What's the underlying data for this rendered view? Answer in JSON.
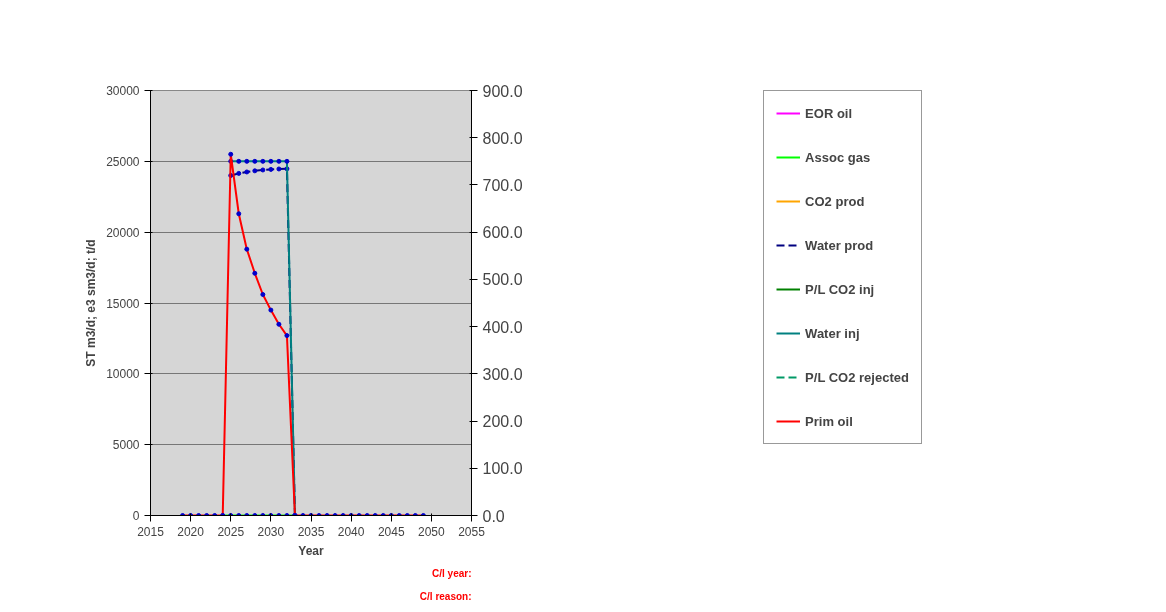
{
  "chart_data": {
    "type": "line",
    "xlabel": "Year",
    "ylabel": "ST m3/d; e3 sm3/d; t/d",
    "x": [
      2019,
      2020,
      2021,
      2022,
      2023,
      2024,
      2025,
      2026,
      2027,
      2028,
      2029,
      2030,
      2031,
      2032,
      2033,
      2034,
      2035,
      2036,
      2037,
      2038,
      2039,
      2040,
      2041,
      2042,
      2043,
      2044,
      2045,
      2046,
      2047,
      2048,
      2049
    ],
    "series": [
      {
        "name": "EOR oil",
        "color": "#ff00ff",
        "values": [
          null,
          null,
          null,
          null,
          null,
          null,
          null,
          null,
          null,
          null,
          null,
          null,
          null,
          null,
          null,
          null,
          null,
          null,
          null,
          null,
          null,
          null,
          null,
          null,
          null,
          null,
          null,
          null,
          null,
          null,
          null
        ]
      },
      {
        "name": "Assoc gas",
        "color": "#00ff00",
        "values": [
          null,
          null,
          null,
          null,
          null,
          0,
          0,
          0,
          0,
          0,
          0,
          0,
          0,
          0,
          0,
          null,
          null,
          null,
          null,
          null,
          null,
          null,
          null,
          null,
          null,
          null,
          null,
          null,
          null,
          null,
          null
        ]
      },
      {
        "name": "CO2 prod",
        "color": "#ffa500",
        "values": [
          null,
          null,
          null,
          null,
          null,
          null,
          null,
          null,
          null,
          null,
          null,
          null,
          null,
          null,
          null,
          null,
          null,
          null,
          null,
          null,
          null,
          null,
          null,
          null,
          null,
          null,
          null,
          null,
          null,
          null,
          null
        ]
      },
      {
        "name": "Water prod",
        "color": "#000080",
        "line_style": "dashed",
        "values": [
          null,
          null,
          null,
          null,
          null,
          null,
          24000,
          24150,
          24250,
          24330,
          24390,
          24430,
          24460,
          24470,
          0,
          null,
          null,
          null,
          null,
          null,
          null,
          null,
          null,
          null,
          null,
          null,
          null,
          null,
          null,
          null,
          null
        ]
      },
      {
        "name": "P/L CO2 inj",
        "color": "#008000",
        "values": [
          null,
          null,
          null,
          null,
          null,
          null,
          null,
          null,
          null,
          null,
          null,
          null,
          null,
          null,
          null,
          null,
          null,
          null,
          null,
          null,
          null,
          null,
          null,
          null,
          null,
          null,
          null,
          null,
          null,
          null,
          null
        ]
      },
      {
        "name": "Water inj",
        "color": "#008080",
        "values": [
          null,
          null,
          null,
          null,
          null,
          null,
          25000,
          25000,
          25000,
          25000,
          25000,
          25000,
          25000,
          25000,
          0,
          null,
          null,
          null,
          null,
          null,
          null,
          null,
          null,
          null,
          null,
          null,
          null,
          null,
          null,
          null,
          null
        ]
      },
      {
        "name": "P/L CO2 rejected",
        "color": "#009966",
        "line_style": "dashed",
        "values": [
          null,
          null,
          null,
          null,
          null,
          null,
          null,
          null,
          null,
          null,
          null,
          null,
          null,
          null,
          null,
          null,
          null,
          null,
          null,
          null,
          null,
          null,
          null,
          null,
          null,
          null,
          null,
          null,
          null,
          null,
          null
        ]
      },
      {
        "name": "Prim oil",
        "color": "#ff0000",
        "values": [
          0,
          0,
          0,
          0,
          0,
          0,
          25500,
          21300,
          18800,
          17100,
          15600,
          14500,
          13500,
          12700,
          0,
          0,
          0,
          0,
          0,
          0,
          0,
          0,
          0,
          0,
          0,
          0,
          0,
          0,
          0,
          0,
          0
        ]
      }
    ],
    "xlim": [
      2015,
      2055
    ],
    "xticks": [
      2015,
      2020,
      2025,
      2030,
      2035,
      2040,
      2045,
      2050,
      2055
    ],
    "ylim": [
      0,
      30000
    ],
    "yticks": [
      0,
      5000,
      10000,
      15000,
      20000,
      25000,
      30000
    ],
    "y2lim": [
      0,
      900
    ],
    "y2ticks": [
      {
        "value": 0,
        "label": "0.0"
      },
      {
        "value": 100,
        "label": "100.0"
      },
      {
        "value": 200,
        "label": "200.0"
      },
      {
        "value": 300,
        "label": "300.0"
      },
      {
        "value": 400,
        "label": "400.0"
      },
      {
        "value": 500,
        "label": "500.0"
      },
      {
        "value": 600,
        "label": "600.0"
      },
      {
        "value": 700,
        "label": "700.0"
      },
      {
        "value": 800,
        "label": "800.0"
      },
      {
        "value": 900,
        "label": "900.0"
      }
    ],
    "grid": "y",
    "legend": "right",
    "marker": "circle",
    "line_style": "solid",
    "annotations": [
      "C/l year:",
      "C/l reason:"
    ]
  }
}
